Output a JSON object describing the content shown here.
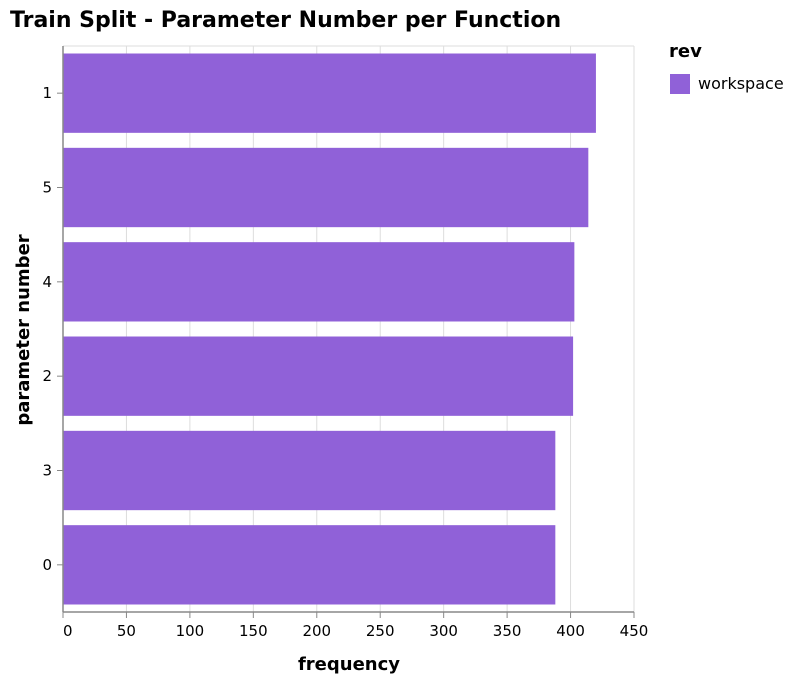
{
  "chart_data": {
    "type": "bar",
    "orientation": "horizontal",
    "title": "Train Split - Parameter Number per Function",
    "xlabel": "frequency",
    "ylabel": "parameter number",
    "categories": [
      "1",
      "5",
      "4",
      "2",
      "3",
      "0"
    ],
    "series": [
      {
        "name": "workspace",
        "values": [
          420,
          414,
          403,
          402,
          388,
          388
        ]
      }
    ],
    "xlim": [
      0,
      450
    ],
    "xticks": [
      "0",
      "50",
      "100",
      "150",
      "200",
      "250",
      "300",
      "350",
      "400",
      "450"
    ],
    "grid": true,
    "legend": {
      "title": "rev",
      "position": "top-right"
    },
    "colors": {
      "bar": "#9061d8",
      "grid": "#dddddd",
      "axis": "#888888"
    }
  }
}
